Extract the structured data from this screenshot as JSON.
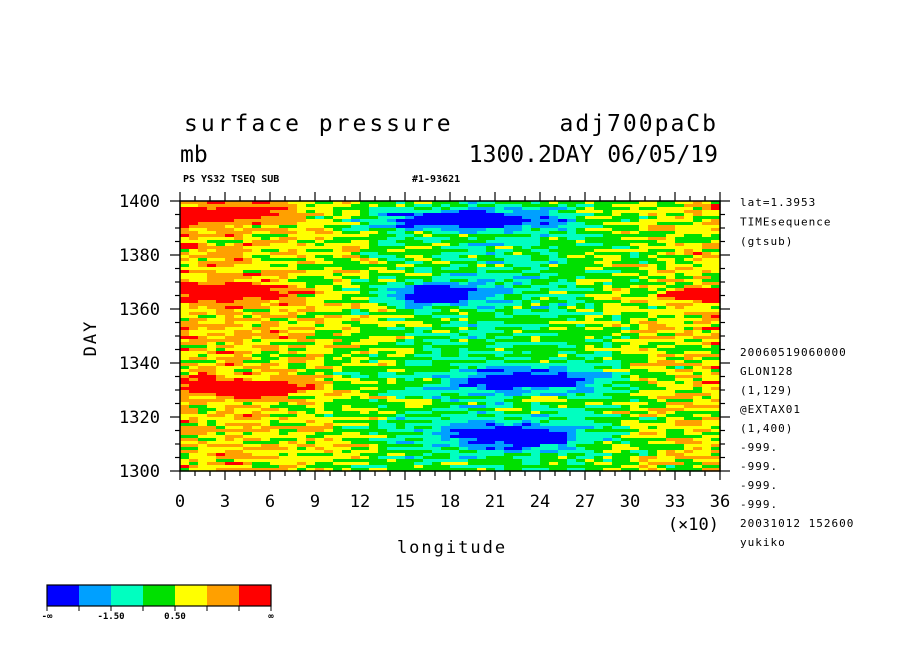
{
  "chart_data": {
    "type": "heatmap",
    "title_left": "surface pressure",
    "title_right": "adj700paCb",
    "units": "mb",
    "time_stamp": "1300.2DAY 06/05/19",
    "subheader_left": "PS YS32 TSEQ SUB",
    "subheader_right": "#1-93621",
    "xlabel": "longitude",
    "x_multiplier": "(×10)",
    "ylabel": "DAY",
    "xlim": [
      0,
      36
    ],
    "ylim": [
      1300,
      1400
    ],
    "x_ticks": [
      "0",
      "3",
      "6",
      "9",
      "12",
      "15",
      "18",
      "21",
      "24",
      "27",
      "30",
      "33",
      "36"
    ],
    "y_ticks": [
      "1300",
      "1320",
      "1340",
      "1360",
      "1380",
      "1400"
    ],
    "side_info_top": [
      "lat=1.3953",
      "TIMEsequence",
      "(gtsub)"
    ],
    "side_info_bottom": [
      "20060519060000",
      "GLON128",
      "(1,129)",
      "@EXTAX01",
      "(1,400)",
      "-999.",
      "-999.",
      "-999.",
      "-999.",
      "20031012 152600",
      "yukiko"
    ],
    "colorbar": {
      "colors": [
        "#0000ff",
        "#00a0ff",
        "#00ffc0",
        "#00e000",
        "#ffff00",
        "#ffa000",
        "#ff0000"
      ],
      "labels": [
        "-∞",
        "-1.50",
        "0.50",
        "∞"
      ]
    },
    "regions_low": [
      {
        "lon": 19,
        "day": 1393,
        "rlon": 6,
        "rday": 3.5
      },
      {
        "lon": 17,
        "day": 1366,
        "rlon": 3,
        "rday": 4
      },
      {
        "lon": 23,
        "day": 1334,
        "rlon": 5,
        "rday": 4
      },
      {
        "lon": 22,
        "day": 1313,
        "rlon": 5,
        "rday": 4.5
      }
    ],
    "regions_high": [
      {
        "lon": 3,
        "day": 1395,
        "rlon": 4,
        "rday": 3
      },
      {
        "lon": 3,
        "day": 1366,
        "rlon": 4,
        "rday": 3
      },
      {
        "lon": 4,
        "day": 1331,
        "rlon": 4,
        "rday": 3
      },
      {
        "lon": 35,
        "day": 1365,
        "rlon": 2,
        "rday": 2
      }
    ]
  }
}
